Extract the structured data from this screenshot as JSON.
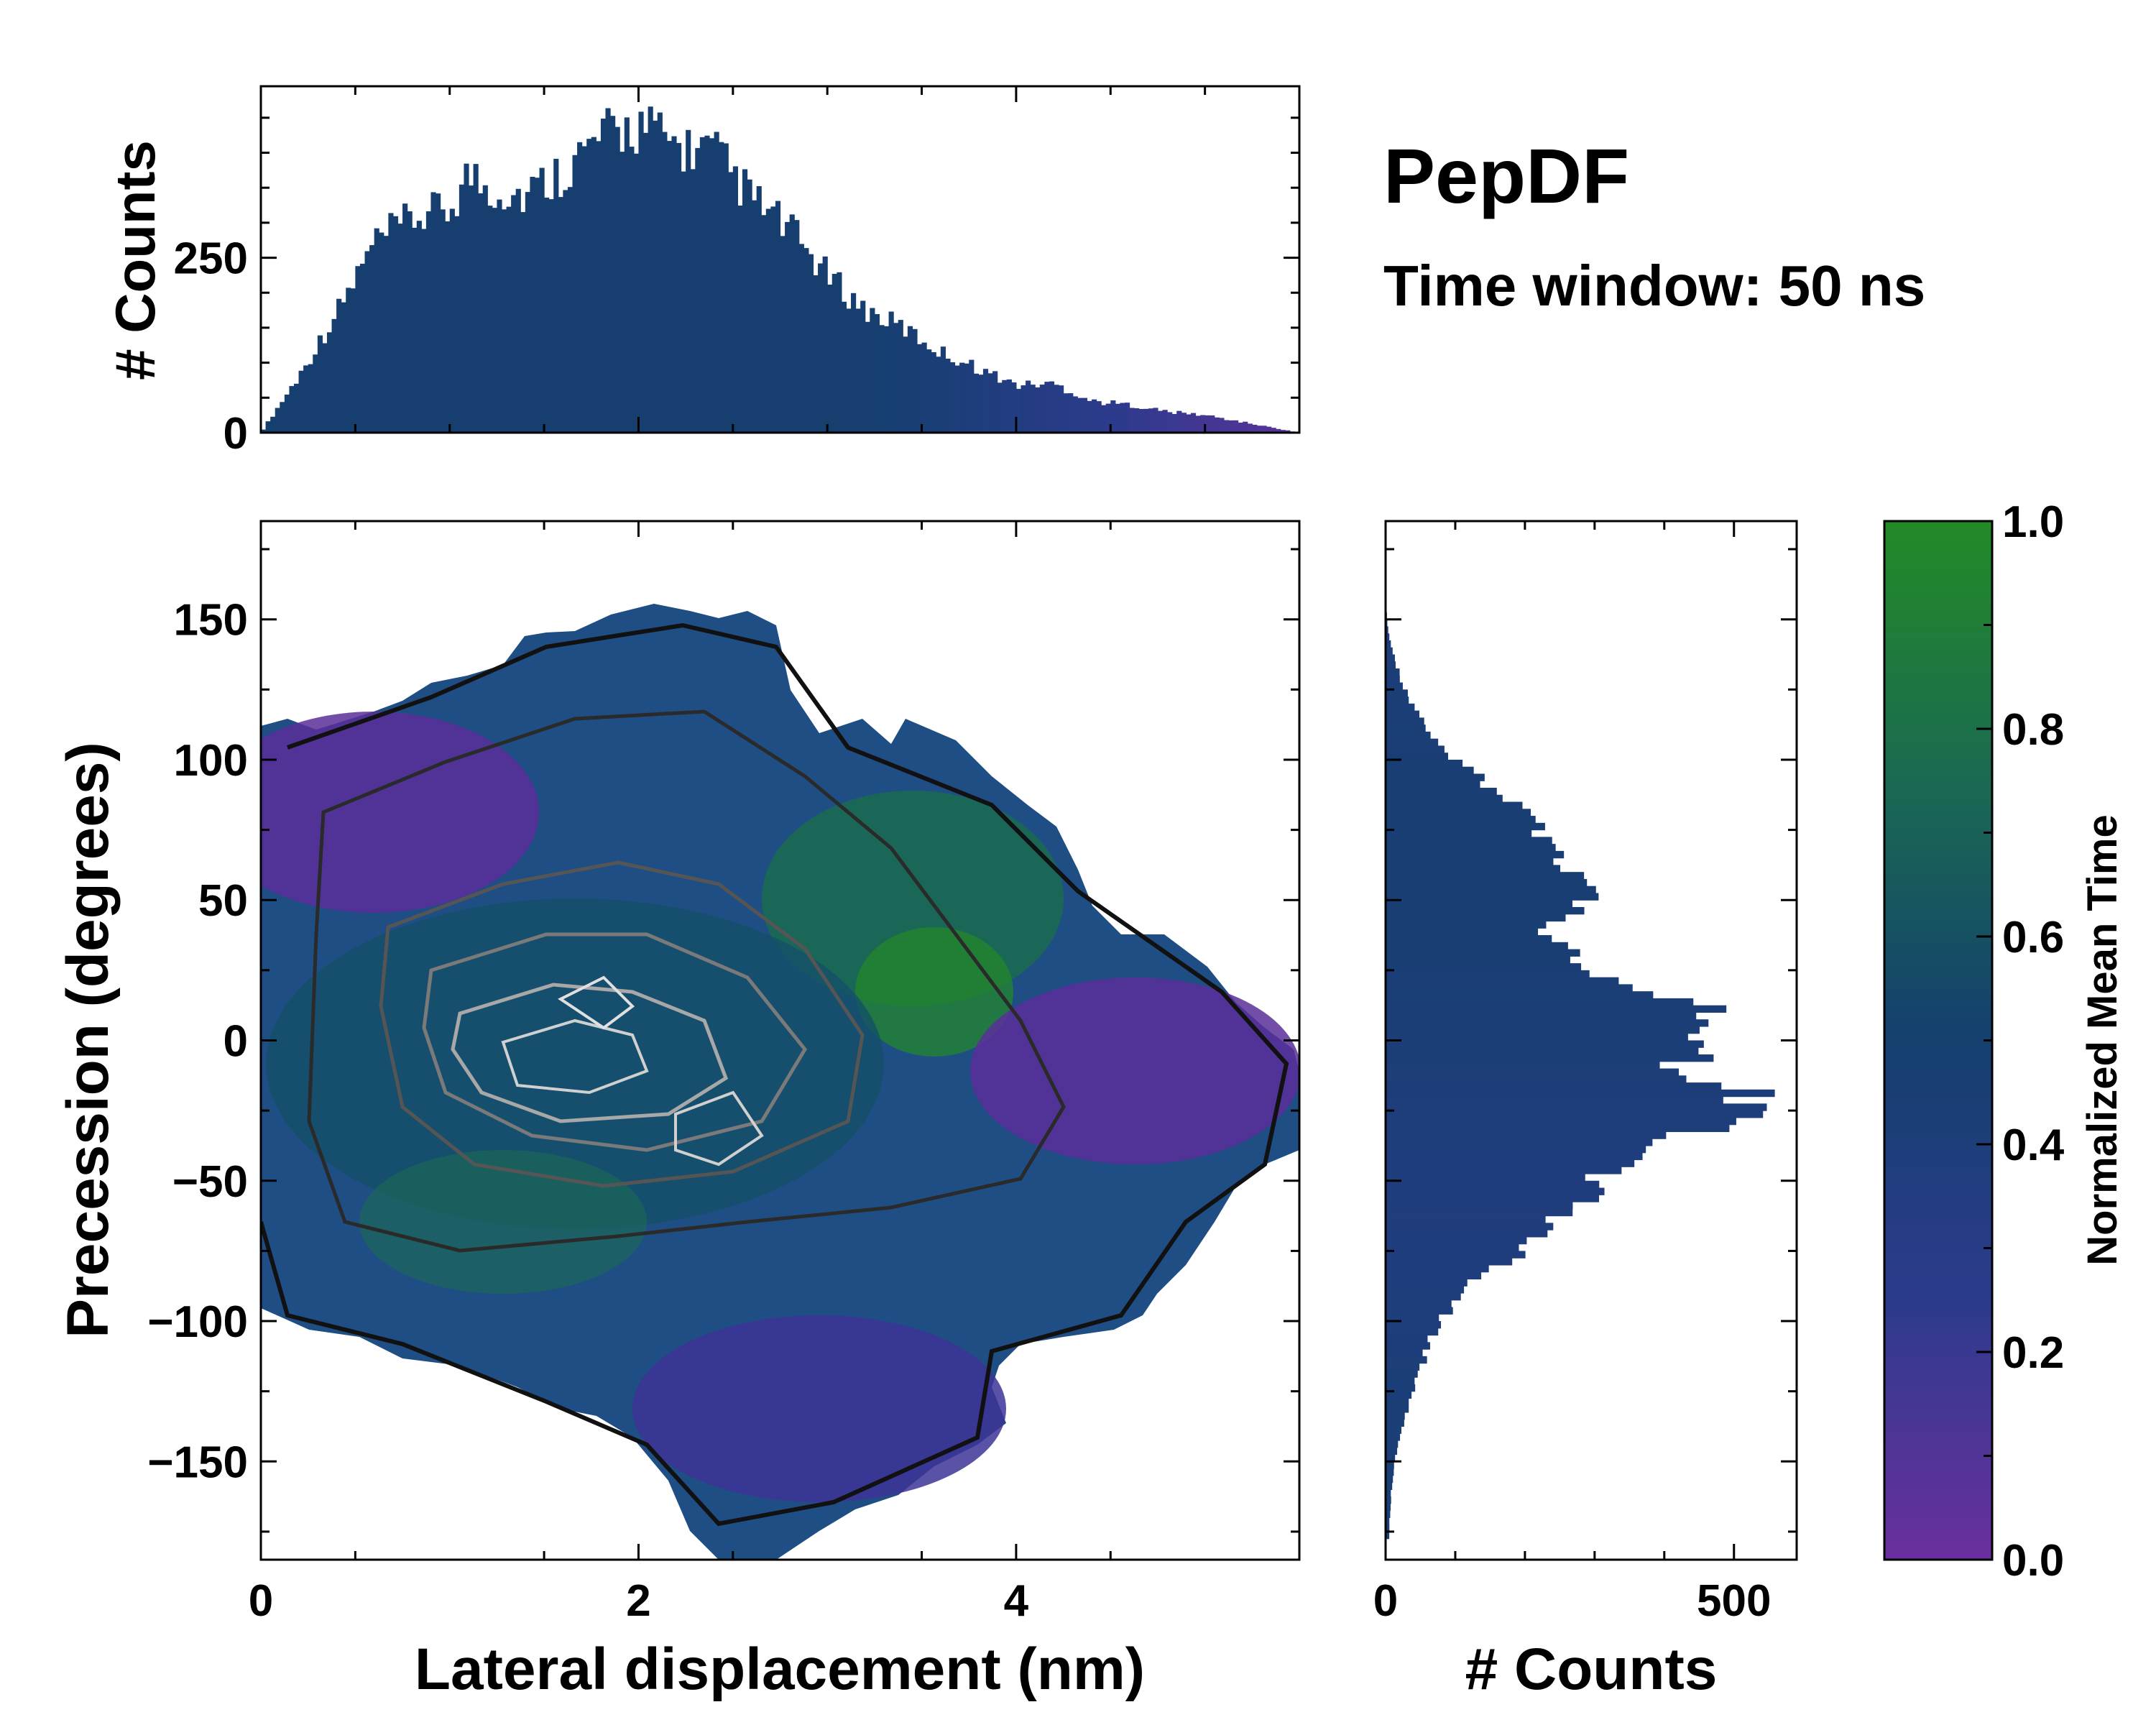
{
  "figure": {
    "title": "PepDF",
    "subtitle": "Time window: 50 ns"
  },
  "chart_data": [
    {
      "id": "main",
      "type": "heatmap",
      "title": "",
      "xlabel": "Lateral displacement (nm)",
      "ylabel": "Precession (degrees)",
      "xlim": [
        0,
        5.5
      ],
      "ylim": [
        -185,
        185
      ],
      "xticks": [
        0,
        2,
        4
      ],
      "xtick_labels": [
        "0",
        "2",
        "4"
      ],
      "yticks": [
        -150,
        -100,
        -50,
        0,
        50,
        100,
        150
      ],
      "ytick_labels": [
        "−150",
        "−100",
        "−50",
        "0",
        "50",
        "100",
        "150"
      ],
      "grid": false,
      "color_field": "Normalized Mean Time (0-1)",
      "regions": [
        {
          "name": "high-density core",
          "x": [
            0.8,
            3.0
          ],
          "y": [
            -60,
            20
          ],
          "mean_time": 0.5
        },
        {
          "name": "upper-left purple",
          "x": [
            0.0,
            1.6
          ],
          "y": [
            40,
            110
          ],
          "mean_time": 0.15
        },
        {
          "name": "upper-right green",
          "x": [
            3.0,
            4.2
          ],
          "y": [
            30,
            100
          ],
          "mean_time": 0.8
        },
        {
          "name": "right purple",
          "x": [
            3.9,
            5.4
          ],
          "y": [
            -40,
            30
          ],
          "mean_time": 0.15
        },
        {
          "name": "lower purple lobe",
          "x": [
            1.8,
            3.9
          ],
          "y": [
            -175,
            -100
          ],
          "mean_time": 0.25
        }
      ]
    },
    {
      "id": "top-histogram",
      "type": "bar",
      "xlabel": "",
      "ylabel": "# Counts",
      "xlim": [
        0,
        5.5
      ],
      "ylim": [
        0,
        495
      ],
      "yticks": [
        0,
        250
      ],
      "ytick_labels": [
        "0",
        "250"
      ],
      "bin_width": 0.025,
      "x": [
        0.0,
        0.2,
        0.4,
        0.6,
        0.8,
        1.0,
        1.1,
        1.2,
        1.4,
        1.6,
        1.8,
        2.0,
        2.2,
        2.4,
        2.6,
        2.8,
        3.0,
        3.2,
        3.4,
        3.6,
        3.8,
        4.0,
        4.2,
        4.4,
        4.6,
        4.8,
        5.0,
        5.2,
        5.4,
        5.5
      ],
      "values": [
        0,
        80,
        170,
        270,
        305,
        320,
        370,
        350,
        340,
        375,
        420,
        440,
        410,
        400,
        335,
        290,
        225,
        175,
        150,
        115,
        92,
        68,
        70,
        45,
        40,
        30,
        25,
        15,
        5,
        0
      ]
    },
    {
      "id": "right-histogram",
      "type": "bar",
      "orientation": "horizontal",
      "xlabel": "# Counts",
      "ylabel": "",
      "xlim": [
        0,
        590
      ],
      "ylim": [
        -185,
        185
      ],
      "xticks": [
        0,
        500
      ],
      "xtick_labels": [
        "0",
        "500"
      ],
      "bin_width": 2.5,
      "y": [
        -175,
        -160,
        -140,
        -120,
        -100,
        -90,
        -80,
        -70,
        -60,
        -50,
        -40,
        -30,
        -20,
        -10,
        0,
        10,
        20,
        30,
        40,
        50,
        60,
        70,
        80,
        90,
        100,
        110,
        120,
        130,
        140,
        150
      ],
      "values": [
        5,
        8,
        20,
        45,
        75,
        110,
        160,
        220,
        260,
        310,
        370,
        490,
        520,
        430,
        440,
        470,
        350,
        260,
        240,
        290,
        260,
        240,
        210,
        150,
        100,
        60,
        35,
        20,
        8,
        2
      ]
    }
  ],
  "colorbar": {
    "label": "Normalized Mean Time",
    "ticks": [
      "0.0",
      "0.2",
      "0.4",
      "0.6",
      "0.8",
      "1.0"
    ],
    "range": [
      0,
      1
    ],
    "colors": [
      "#6a2f9e",
      "#2c3b8c",
      "#143f6e",
      "#1a6a52",
      "#238a26"
    ]
  }
}
